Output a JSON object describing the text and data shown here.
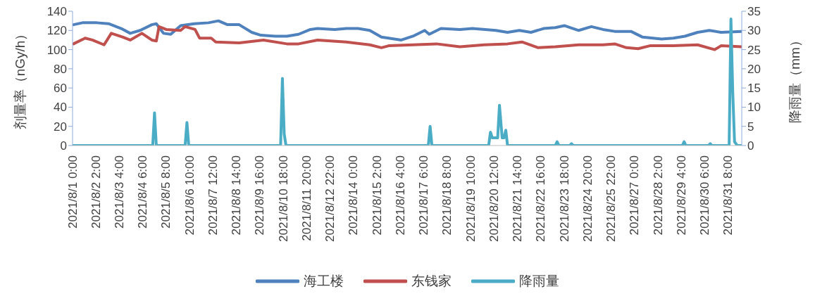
{
  "chart_data": {
    "type": "line",
    "ylabel": "剂量率（nGy/h）",
    "y2label": "降雨量（mm）",
    "xlim": [
      "2021-08-01T00:00",
      "2021-08-31T23:00"
    ],
    "xticks": [
      {
        "value": "2021-08-01T00:00",
        "label": "2021/8/1 0:00"
      },
      {
        "value": "2021-08-02T02:00",
        "label": "2021/8/2 2:00"
      },
      {
        "value": "2021-08-03T04:00",
        "label": "2021/8/3 4:00"
      },
      {
        "value": "2021-08-04T06:00",
        "label": "2021/8/4 6:00"
      },
      {
        "value": "2021-08-05T08:00",
        "label": "2021/8/5 8:00"
      },
      {
        "value": "2021-08-06T10:00",
        "label": "2021/8/6 10:00"
      },
      {
        "value": "2021-08-07T12:00",
        "label": "2021/8/7 12:00"
      },
      {
        "value": "2021-08-08T14:00",
        "label": "2021/8/8 14:00"
      },
      {
        "value": "2021-08-09T16:00",
        "label": "2021/8/9 16:00"
      },
      {
        "value": "2021-08-10T18:00",
        "label": "2021/8/10 18:00"
      },
      {
        "value": "2021-08-11T20:00",
        "label": "2021/8/11 20:00"
      },
      {
        "value": "2021-08-12T22:00",
        "label": "2021/8/12 22:00"
      },
      {
        "value": "2021-08-14T00:00",
        "label": "2021/8/14 0:00"
      },
      {
        "value": "2021-08-15T02:00",
        "label": "2021/8/15 2:00"
      },
      {
        "value": "2021-08-16T04:00",
        "label": "2021/8/16 4:00"
      },
      {
        "value": "2021-08-17T06:00",
        "label": "2021/8/17 6:00"
      },
      {
        "value": "2021-08-18T08:00",
        "label": "2021/8/18 8:00"
      },
      {
        "value": "2021-08-19T10:00",
        "label": "2021/8/19 10:00"
      },
      {
        "value": "2021-08-20T12:00",
        "label": "2021/8/20 12:00"
      },
      {
        "value": "2021-08-21T14:00",
        "label": "2021/8/21 14:00"
      },
      {
        "value": "2021-08-22T16:00",
        "label": "2021/8/22 16:00"
      },
      {
        "value": "2021-08-23T18:00",
        "label": "2021/8/23 18:00"
      },
      {
        "value": "2021-08-24T20:00",
        "label": "2021/8/24 20:00"
      },
      {
        "value": "2021-08-25T22:00",
        "label": "2021/8/25 22:00"
      },
      {
        "value": "2021-08-27T00:00",
        "label": "2021/8/27 0:00"
      },
      {
        "value": "2021-08-28T02:00",
        "label": "2021/8/28 2:00"
      },
      {
        "value": "2021-08-29T04:00",
        "label": "2021/8/29 4:00"
      },
      {
        "value": "2021-08-30T06:00",
        "label": "2021/8/30 6:00"
      },
      {
        "value": "2021-08-31T08:00",
        "label": "2021/8/31 8:00"
      }
    ],
    "ylim": [
      0,
      140
    ],
    "yticks": [
      0,
      20,
      40,
      60,
      80,
      100,
      120,
      140
    ],
    "y2lim": [
      0,
      35
    ],
    "y2ticks": [
      0,
      5,
      10,
      15,
      20,
      25,
      30,
      35
    ],
    "grid": false,
    "legend": "bottom",
    "marker": "none",
    "line_style": "solid",
    "series": [
      {
        "name": "海工楼",
        "color": "#4f81bd",
        "x": [
          "2021-08-01T01:00",
          "2021-08-01T11:00",
          "2021-08-02T03:00",
          "2021-08-02T16:00",
          "2021-08-03T06:00",
          "2021-08-03T16:00",
          "2021-08-04T03:00",
          "2021-08-04T16:00",
          "2021-08-04T21:00",
          "2021-08-05T05:00",
          "2021-08-05T13:00",
          "2021-08-06T00:00",
          "2021-08-06T15:00",
          "2021-08-07T07:00",
          "2021-08-07T18:00",
          "2021-08-08T04:00",
          "2021-08-08T17:00",
          "2021-08-09T07:00",
          "2021-08-09T17:00",
          "2021-08-10T09:00",
          "2021-08-10T22:00",
          "2021-08-11T11:00",
          "2021-08-12T00:00",
          "2021-08-12T08:00",
          "2021-08-13T03:00",
          "2021-08-13T16:00",
          "2021-08-14T05:00",
          "2021-08-14T18:00",
          "2021-08-15T07:00",
          "2021-08-15T15:00",
          "2021-08-16T05:00",
          "2021-08-16T18:00",
          "2021-08-17T07:00",
          "2021-08-17T12:00",
          "2021-08-18T01:00",
          "2021-08-18T22:00",
          "2021-08-19T12:00",
          "2021-08-20T14:00",
          "2021-08-21T03:00",
          "2021-08-21T16:00",
          "2021-08-22T05:00",
          "2021-08-22T19:00",
          "2021-08-23T08:00",
          "2021-08-23T18:00",
          "2021-08-24T10:00",
          "2021-08-25T00:00",
          "2021-08-25T13:00",
          "2021-08-26T02:00",
          "2021-08-26T20:00",
          "2021-08-27T09:00",
          "2021-08-28T06:00",
          "2021-08-28T19:00",
          "2021-08-29T08:00",
          "2021-08-29T22:00",
          "2021-08-30T11:00",
          "2021-08-31T00:00",
          "2021-08-31T23:00"
        ],
        "values": [
          126,
          128,
          128,
          127,
          122,
          117,
          120,
          126,
          127,
          117,
          116,
          125,
          127,
          128,
          130,
          126,
          126,
          118,
          115,
          114,
          114,
          116,
          121,
          122,
          121,
          122,
          122,
          120,
          113,
          112,
          110,
          114,
          120,
          116,
          122,
          121,
          122,
          120,
          118,
          120,
          118,
          122,
          123,
          125,
          120,
          124,
          121,
          119,
          119,
          113,
          111,
          112,
          114,
          118,
          120,
          118,
          119
        ]
      },
      {
        "name": "东钱家",
        "color": "#c0504d",
        "x": [
          "2021-08-01T01:00",
          "2021-08-01T14:00",
          "2021-08-01T22:00",
          "2021-08-02T11:00",
          "2021-08-02T19:00",
          "2021-08-03T08:00",
          "2021-08-03T16:00",
          "2021-08-04T05:00",
          "2021-08-04T16:00",
          "2021-08-04T21:00",
          "2021-08-05T00:00",
          "2021-08-05T08:00",
          "2021-08-06T00:00",
          "2021-08-06T05:00",
          "2021-08-06T16:00",
          "2021-08-06T21:00",
          "2021-08-07T10:00",
          "2021-08-07T15:00",
          "2021-08-08T17:00",
          "2021-08-09T20:00",
          "2021-08-10T22:00",
          "2021-08-11T11:00",
          "2021-08-12T08:00",
          "2021-08-13T16:00",
          "2021-08-14T18:00",
          "2021-08-15T07:00",
          "2021-08-15T15:00",
          "2021-08-16T18:00",
          "2021-08-17T20:00",
          "2021-08-18T22:00",
          "2021-08-20T01:00",
          "2021-08-21T03:00",
          "2021-08-21T19:00",
          "2021-08-22T13:00",
          "2021-08-23T08:00",
          "2021-08-24T10:00",
          "2021-08-25T13:00",
          "2021-08-26T02:00",
          "2021-08-26T15:00",
          "2021-08-27T04:00",
          "2021-08-27T17:00",
          "2021-08-28T19:00",
          "2021-08-29T22:00",
          "2021-08-30T17:00",
          "2021-08-31T00:00",
          "2021-08-31T23:00"
        ],
        "values": [
          106,
          112,
          110,
          105,
          117,
          113,
          110,
          117,
          110,
          109,
          124,
          121,
          120,
          124,
          121,
          112,
          112,
          108,
          107,
          110,
          106,
          106,
          110,
          108,
          105,
          102,
          104,
          105,
          106,
          103,
          105,
          106,
          108,
          102,
          103,
          105,
          105,
          106,
          102,
          101,
          104,
          104,
          105,
          100,
          104,
          103
        ]
      },
      {
        "name": "降雨量",
        "color": "#4bacc6",
        "axis": "y2",
        "x": [
          "2021-08-01T00:00",
          "2021-08-04T17:00",
          "2021-08-04T19:00",
          "2021-08-04T21:00",
          "2021-08-06T05:00",
          "2021-08-06T07:00",
          "2021-08-06T09:00",
          "2021-08-10T15:00",
          "2021-08-10T17:00",
          "2021-08-10T19:00",
          "2021-08-10T21:00",
          "2021-08-17T11:00",
          "2021-08-17T13:00",
          "2021-08-17T15:00",
          "2021-08-20T06:00",
          "2021-08-20T08:00",
          "2021-08-20T10:00",
          "2021-08-20T16:00",
          "2021-08-20T18:00",
          "2021-08-20T21:00",
          "2021-08-20T23:00",
          "2021-08-21T01:00",
          "2021-08-21T03:00",
          "2021-08-23T08:00",
          "2021-08-23T10:00",
          "2021-08-23T12:00",
          "2021-08-24T00:00",
          "2021-08-24T02:00",
          "2021-08-24T04:00",
          "2021-08-29T05:00",
          "2021-08-29T07:00",
          "2021-08-29T09:00",
          "2021-08-30T10:00",
          "2021-08-30T12:00",
          "2021-08-30T14:00",
          "2021-08-31T09:00",
          "2021-08-31T11:00",
          "2021-08-31T13:00",
          "2021-08-31T15:00",
          "2021-08-31T18:00",
          "2021-08-31T23:00"
        ],
        "values": [
          0,
          0,
          8.5,
          0,
          0,
          6,
          0,
          0,
          17.5,
          3,
          0,
          0,
          5,
          0,
          0,
          3.5,
          2,
          2,
          10.5,
          2,
          2,
          4,
          0,
          0,
          1,
          0,
          0,
          0.5,
          0,
          0,
          1,
          0,
          0,
          0.5,
          0,
          0,
          33,
          14,
          1,
          0,
          0
        ]
      }
    ]
  }
}
